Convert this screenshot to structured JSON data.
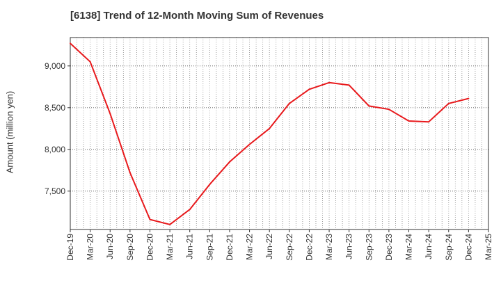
{
  "chart_data": {
    "type": "line",
    "title": "[6138]  Trend of 12-Month Moving Sum of Revenues",
    "xlabel": "",
    "ylabel": "Amount (million yen)",
    "x_ticks": [
      "Dec-19",
      "Mar-20",
      "Jun-20",
      "Sep-20",
      "Dec-20",
      "Mar-21",
      "Jun-21",
      "Sep-21",
      "Dec-21",
      "Mar-22",
      "Jun-22",
      "Sep-22",
      "Dec-22",
      "Mar-23",
      "Jun-23",
      "Sep-23",
      "Dec-23",
      "Mar-24",
      "Jun-24",
      "Sep-24",
      "Dec-24",
      "Mar-25"
    ],
    "y_ticks": [
      7500,
      8000,
      8500,
      9000
    ],
    "y_tick_labels": [
      "7,500",
      "8,000",
      "8,500",
      "9,000"
    ],
    "ylim": [
      7040,
      9340
    ],
    "grid": true,
    "series": [
      {
        "color": "#e8191c",
        "x": [
          "Dec-19",
          "Mar-20",
          "Jun-20",
          "Sep-20",
          "Dec-20",
          "Mar-21",
          "Jun-21",
          "Sep-21",
          "Dec-21",
          "Mar-22",
          "Jun-22",
          "Sep-22",
          "Dec-22",
          "Mar-23",
          "Jun-23",
          "Sep-23",
          "Dec-23",
          "Mar-24",
          "Jun-24",
          "Sep-24",
          "Dec-24"
        ],
        "values": [
          9270,
          9050,
          8430,
          7720,
          7160,
          7100,
          7280,
          7580,
          7850,
          8060,
          8250,
          8550,
          8720,
          8800,
          8770,
          8520,
          8480,
          8340,
          8330,
          8550,
          8610
        ]
      }
    ]
  }
}
